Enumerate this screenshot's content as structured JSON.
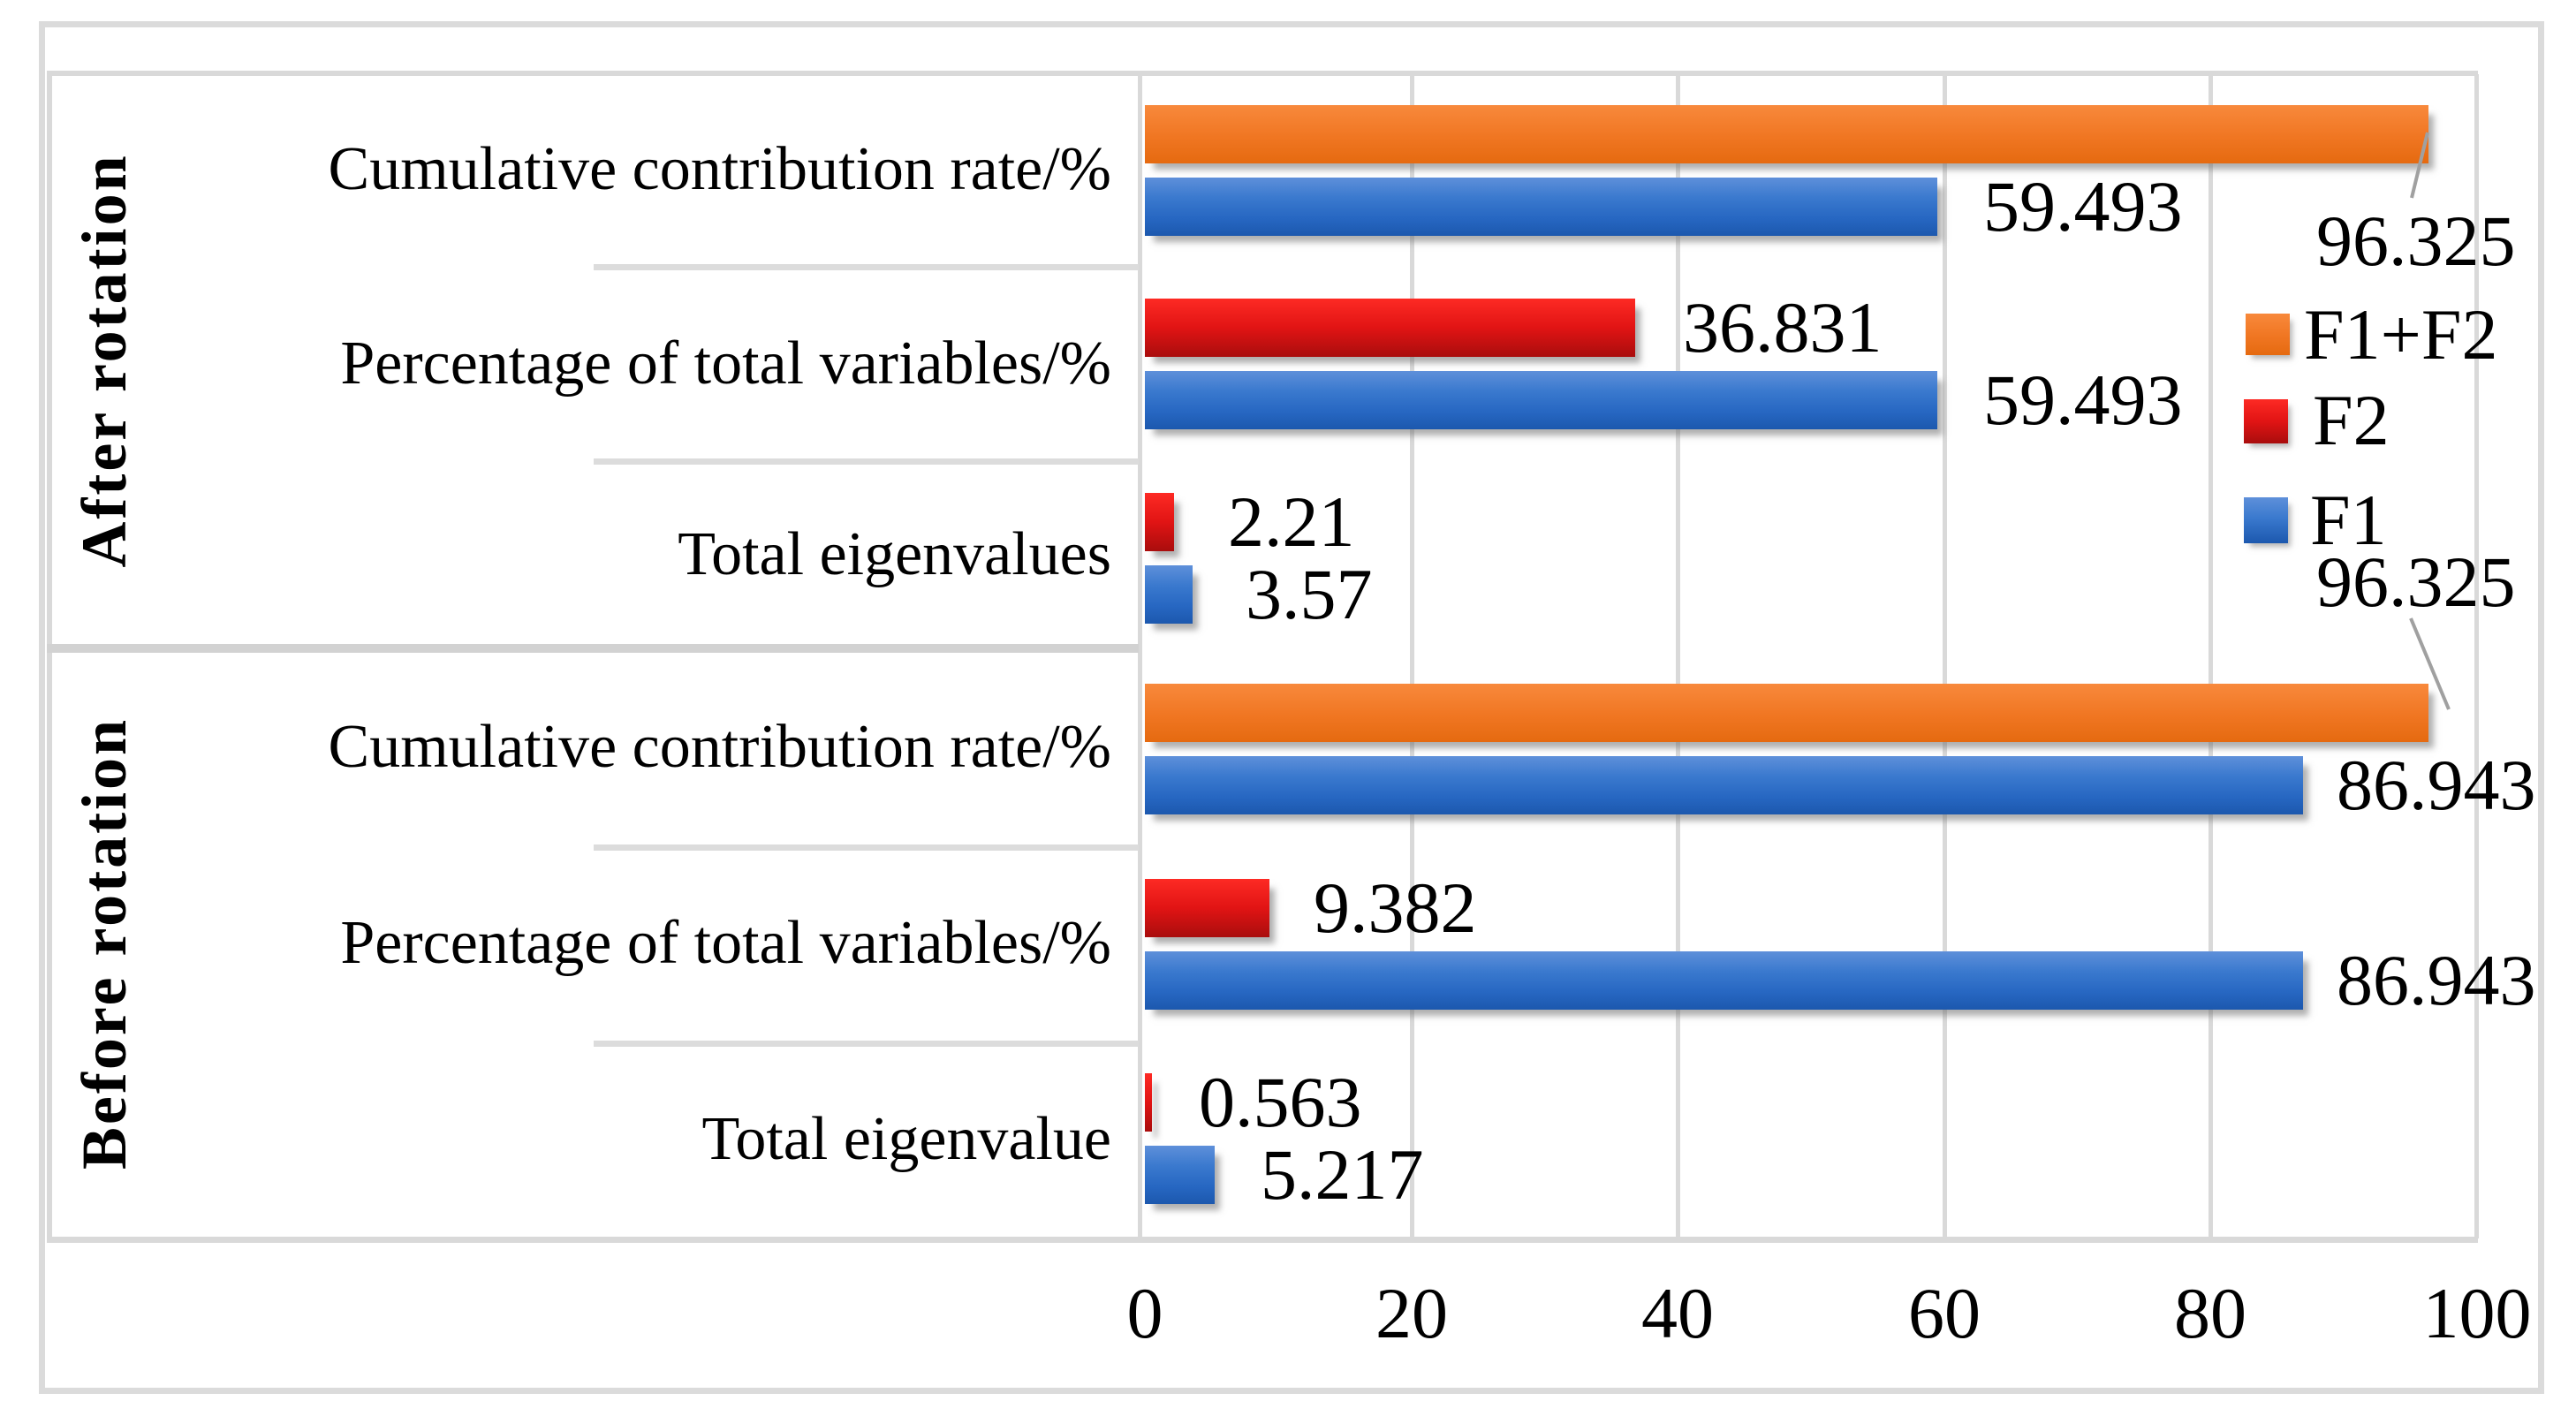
{
  "chart_data": {
    "type": "bar",
    "orientation": "horizontal",
    "title": "",
    "xlabel": "",
    "ylabel": "",
    "x_axis": {
      "range": [
        0,
        100
      ],
      "ticks": [
        "0",
        "20",
        "40",
        "60",
        "80",
        "100"
      ],
      "grid": true,
      "grid_color": "#D9D9D9"
    },
    "legend": {
      "position": "inside-right",
      "items": [
        {
          "label": "F1+F2",
          "color": "#ED7D31"
        },
        {
          "label": "F2",
          "color": "#E11414"
        },
        {
          "label": "F1",
          "color": "#2E6FC6"
        }
      ]
    },
    "groups": [
      {
        "label": "After rotation",
        "rows": [
          {
            "category": "Cumulative contribution rate/%",
            "bars": [
              {
                "series": "F1+F2",
                "value": 96.325,
                "value_label": "96.325",
                "callout": true
              },
              {
                "series": "F1",
                "value": 59.493,
                "value_label": "59.493",
                "callout": false
              }
            ]
          },
          {
            "category": "Percentage of total variables/%",
            "bars": [
              {
                "series": "F2",
                "value": 36.831,
                "value_label": "36.831",
                "callout": false
              },
              {
                "series": "F1",
                "value": 59.493,
                "value_label": "59.493",
                "callout": false
              }
            ]
          },
          {
            "category": "Total eigenvalues",
            "bars": [
              {
                "series": "F2",
                "value": 2.21,
                "value_label": "2.21",
                "callout": false
              },
              {
                "series": "F1",
                "value": 3.57,
                "value_label": "3.57",
                "callout": false
              }
            ]
          }
        ]
      },
      {
        "label": "Before rotation",
        "rows": [
          {
            "category": "Cumulative contribution rate/%",
            "bars": [
              {
                "series": "F1+F2",
                "value": 96.325,
                "value_label": "96.325",
                "callout": true
              },
              {
                "series": "F1",
                "value": 86.943,
                "value_label": "86.943",
                "callout": false
              }
            ]
          },
          {
            "category": "Percentage of total variables/%",
            "bars": [
              {
                "series": "F2",
                "value": 9.382,
                "value_label": "9.382",
                "callout": false
              },
              {
                "series": "F1",
                "value": 86.943,
                "value_label": "86.943",
                "callout": false
              }
            ]
          },
          {
            "category": "Total eigenvalue",
            "bars": [
              {
                "series": "F2",
                "value": 0.563,
                "value_label": "0.563",
                "callout": false
              },
              {
                "series": "F1",
                "value": 5.217,
                "value_label": "5.217",
                "callout": false
              }
            ]
          }
        ]
      }
    ]
  },
  "colors": {
    "series_orange": "#ED7D31",
    "series_red": "#E11414",
    "series_blue": "#2E6FC6",
    "grid": "#D9D9D9",
    "text": "#000000",
    "leader_line": "#A0A0A0"
  }
}
